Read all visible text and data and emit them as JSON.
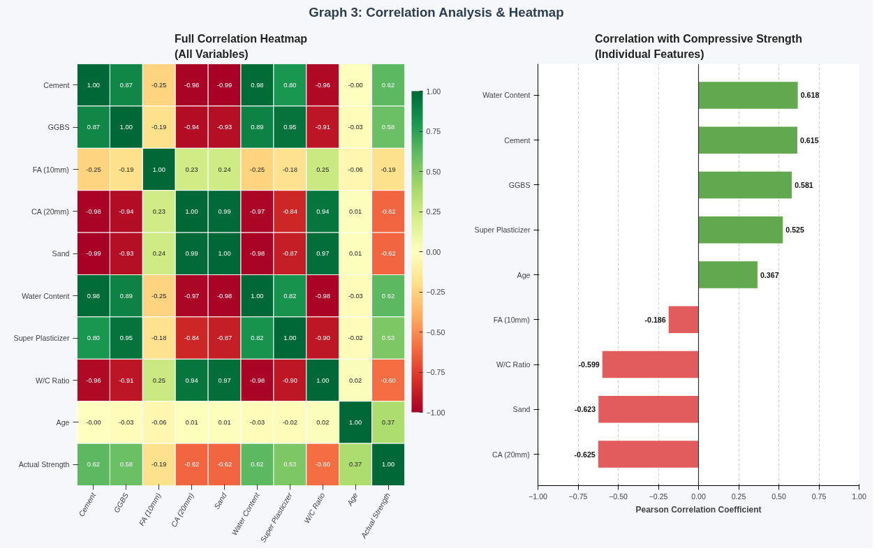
{
  "chart_data": [
    {
      "type": "heatmap",
      "title": "Full Correlation Heatmap\n(All Variables)",
      "annotations": [
        "Graph 3: Correlation Analysis & Heatmap"
      ],
      "categories": [
        "Cement",
        "GGBS",
        "FA (10mm)",
        "CA (20mm)",
        "Sand",
        "Water Content",
        "Super Plasticizer",
        "W/C Ratio",
        "Age",
        "Actual Strength"
      ],
      "y_categories": [
        "Cement",
        "GGBS",
        "FA (10mm)",
        "CA (20mm)",
        "Sand",
        "Water Content",
        "Super Plasticizer",
        "W/C Ratio",
        "Age",
        "Actual Strength"
      ],
      "cells": [
        [
          1.0,
          0.87,
          -0.25,
          -0.98,
          -0.99,
          0.98,
          0.8,
          -0.96,
          0.0,
          0.62
        ],
        [
          0.87,
          1.0,
          -0.19,
          -0.94,
          -0.93,
          0.89,
          0.95,
          -0.91,
          -0.03,
          0.58
        ],
        [
          -0.25,
          -0.19,
          1.0,
          0.23,
          0.24,
          -0.25,
          -0.18,
          0.25,
          -0.06,
          -0.19
        ],
        [
          -0.98,
          -0.94,
          0.23,
          1.0,
          0.99,
          -0.97,
          -0.84,
          0.94,
          0.01,
          -0.62
        ],
        [
          -0.99,
          -0.93,
          0.24,
          0.99,
          1.0,
          -0.98,
          -0.87,
          0.97,
          0.01,
          -0.62
        ],
        [
          0.98,
          0.89,
          -0.25,
          -0.97,
          -0.98,
          1.0,
          0.82,
          -0.98,
          -0.03,
          0.62
        ],
        [
          0.8,
          0.95,
          -0.18,
          -0.84,
          -0.87,
          0.82,
          1.0,
          -0.9,
          -0.02,
          0.53
        ],
        [
          -0.96,
          -0.91,
          0.25,
          0.94,
          0.97,
          -0.98,
          -0.9,
          1.0,
          0.02,
          -0.6
        ],
        [
          0.0,
          -0.03,
          -0.06,
          0.01,
          0.01,
          -0.03,
          -0.02,
          0.02,
          1.0,
          0.37
        ],
        [
          0.62,
          0.58,
          -0.19,
          -0.62,
          -0.62,
          0.62,
          0.53,
          -0.6,
          0.37,
          1.0
        ]
      ],
      "cell_labels": [
        [
          "1.00",
          "0.87",
          "-0.25",
          "-0.98",
          "-0.99",
          "0.98",
          "0.80",
          "-0.96",
          "-0.00",
          "0.62"
        ],
        [
          "0.87",
          "1.00",
          "-0.19",
          "-0.94",
          "-0.93",
          "0.89",
          "0.95",
          "-0.91",
          "-0.03",
          "0.58"
        ],
        [
          "-0.25",
          "-0.19",
          "1.00",
          "0.23",
          "0.24",
          "-0.25",
          "-0.18",
          "0.25",
          "-0.06",
          "-0.19"
        ],
        [
          "-0.98",
          "-0.94",
          "0.23",
          "1.00",
          "0.99",
          "-0.97",
          "-0.84",
          "0.94",
          "0.01",
          "-0.62"
        ],
        [
          "-0.99",
          "-0.93",
          "0.24",
          "0.99",
          "1.00",
          "-0.98",
          "-0.87",
          "0.97",
          "0.01",
          "-0.62"
        ],
        [
          "0.98",
          "0.89",
          "-0.25",
          "-0.97",
          "-0.98",
          "1.00",
          "0.82",
          "-0.98",
          "-0.03",
          "0.62"
        ],
        [
          "0.80",
          "0.95",
          "-0.18",
          "-0.84",
          "-0.87",
          "0.82",
          "1.00",
          "-0.90",
          "-0.02",
          "0.53"
        ],
        [
          "-0.96",
          "-0.91",
          "0.25",
          "0.94",
          "0.97",
          "-0.98",
          "-0.90",
          "1.00",
          "0.02",
          "-0.60"
        ],
        [
          "-0.00",
          "-0.03",
          "-0.06",
          "0.01",
          "0.01",
          "-0.03",
          "-0.02",
          "0.02",
          "1.00",
          "0.37"
        ],
        [
          "0.62",
          "0.58",
          "-0.19",
          "-0.62",
          "-0.62",
          "0.62",
          "0.53",
          "-0.60",
          "0.37",
          "1.00"
        ]
      ],
      "clim": [
        -1,
        1
      ],
      "cticks": [
        {
          "value": -1,
          "label": "−1.00"
        },
        {
          "value": -0.75,
          "label": "−0.75"
        },
        {
          "value": -0.5,
          "label": "−0.50"
        },
        {
          "value": -0.25,
          "label": "−0.25"
        },
        {
          "value": 0,
          "label": "0.00"
        },
        {
          "value": 0.25,
          "label": "0.25"
        },
        {
          "value": 0.5,
          "label": "0.50"
        },
        {
          "value": 0.75,
          "label": "0.75"
        },
        {
          "value": 1,
          "label": "1.00"
        }
      ]
    },
    {
      "type": "bar",
      "orientation": "horizontal",
      "title": "Correlation with Compressive Strength\n(Individual Features)",
      "xlabel": "Pearson Correlation Coefficient",
      "categories": [
        "Water Content",
        "Cement",
        "GGBS",
        "Super Plasticizer",
        "Age",
        "FA (10mm)",
        "W/C Ratio",
        "Sand",
        "CA (20mm)"
      ],
      "values": [
        0.618,
        0.615,
        0.581,
        0.525,
        0.367,
        -0.186,
        -0.599,
        -0.623,
        -0.625
      ],
      "colors": [
        "#5aa346",
        "#5aa346",
        "#5aa346",
        "#5aa346",
        "#5aa346",
        "#e05254",
        "#e05254",
        "#e05254",
        "#e05254"
      ],
      "data_labels": true,
      "xlim": [
        -1,
        1
      ],
      "xticks": [
        {
          "value": -1,
          "label": "−1.00"
        },
        {
          "value": -0.75,
          "label": "−0.75"
        },
        {
          "value": -0.5,
          "label": "−0.50"
        },
        {
          "value": -0.25,
          "label": "−0.25"
        },
        {
          "value": 0,
          "label": "0.00"
        },
        {
          "value": 0.25,
          "label": "0.25"
        },
        {
          "value": 0.5,
          "label": "0.50"
        },
        {
          "value": 0.75,
          "label": "0.75"
        },
        {
          "value": 1,
          "label": "1.00"
        }
      ],
      "grid": "x",
      "ref_lines": [
        {
          "axis": "x",
          "value": 0,
          "color": "#333333"
        }
      ]
    }
  ]
}
